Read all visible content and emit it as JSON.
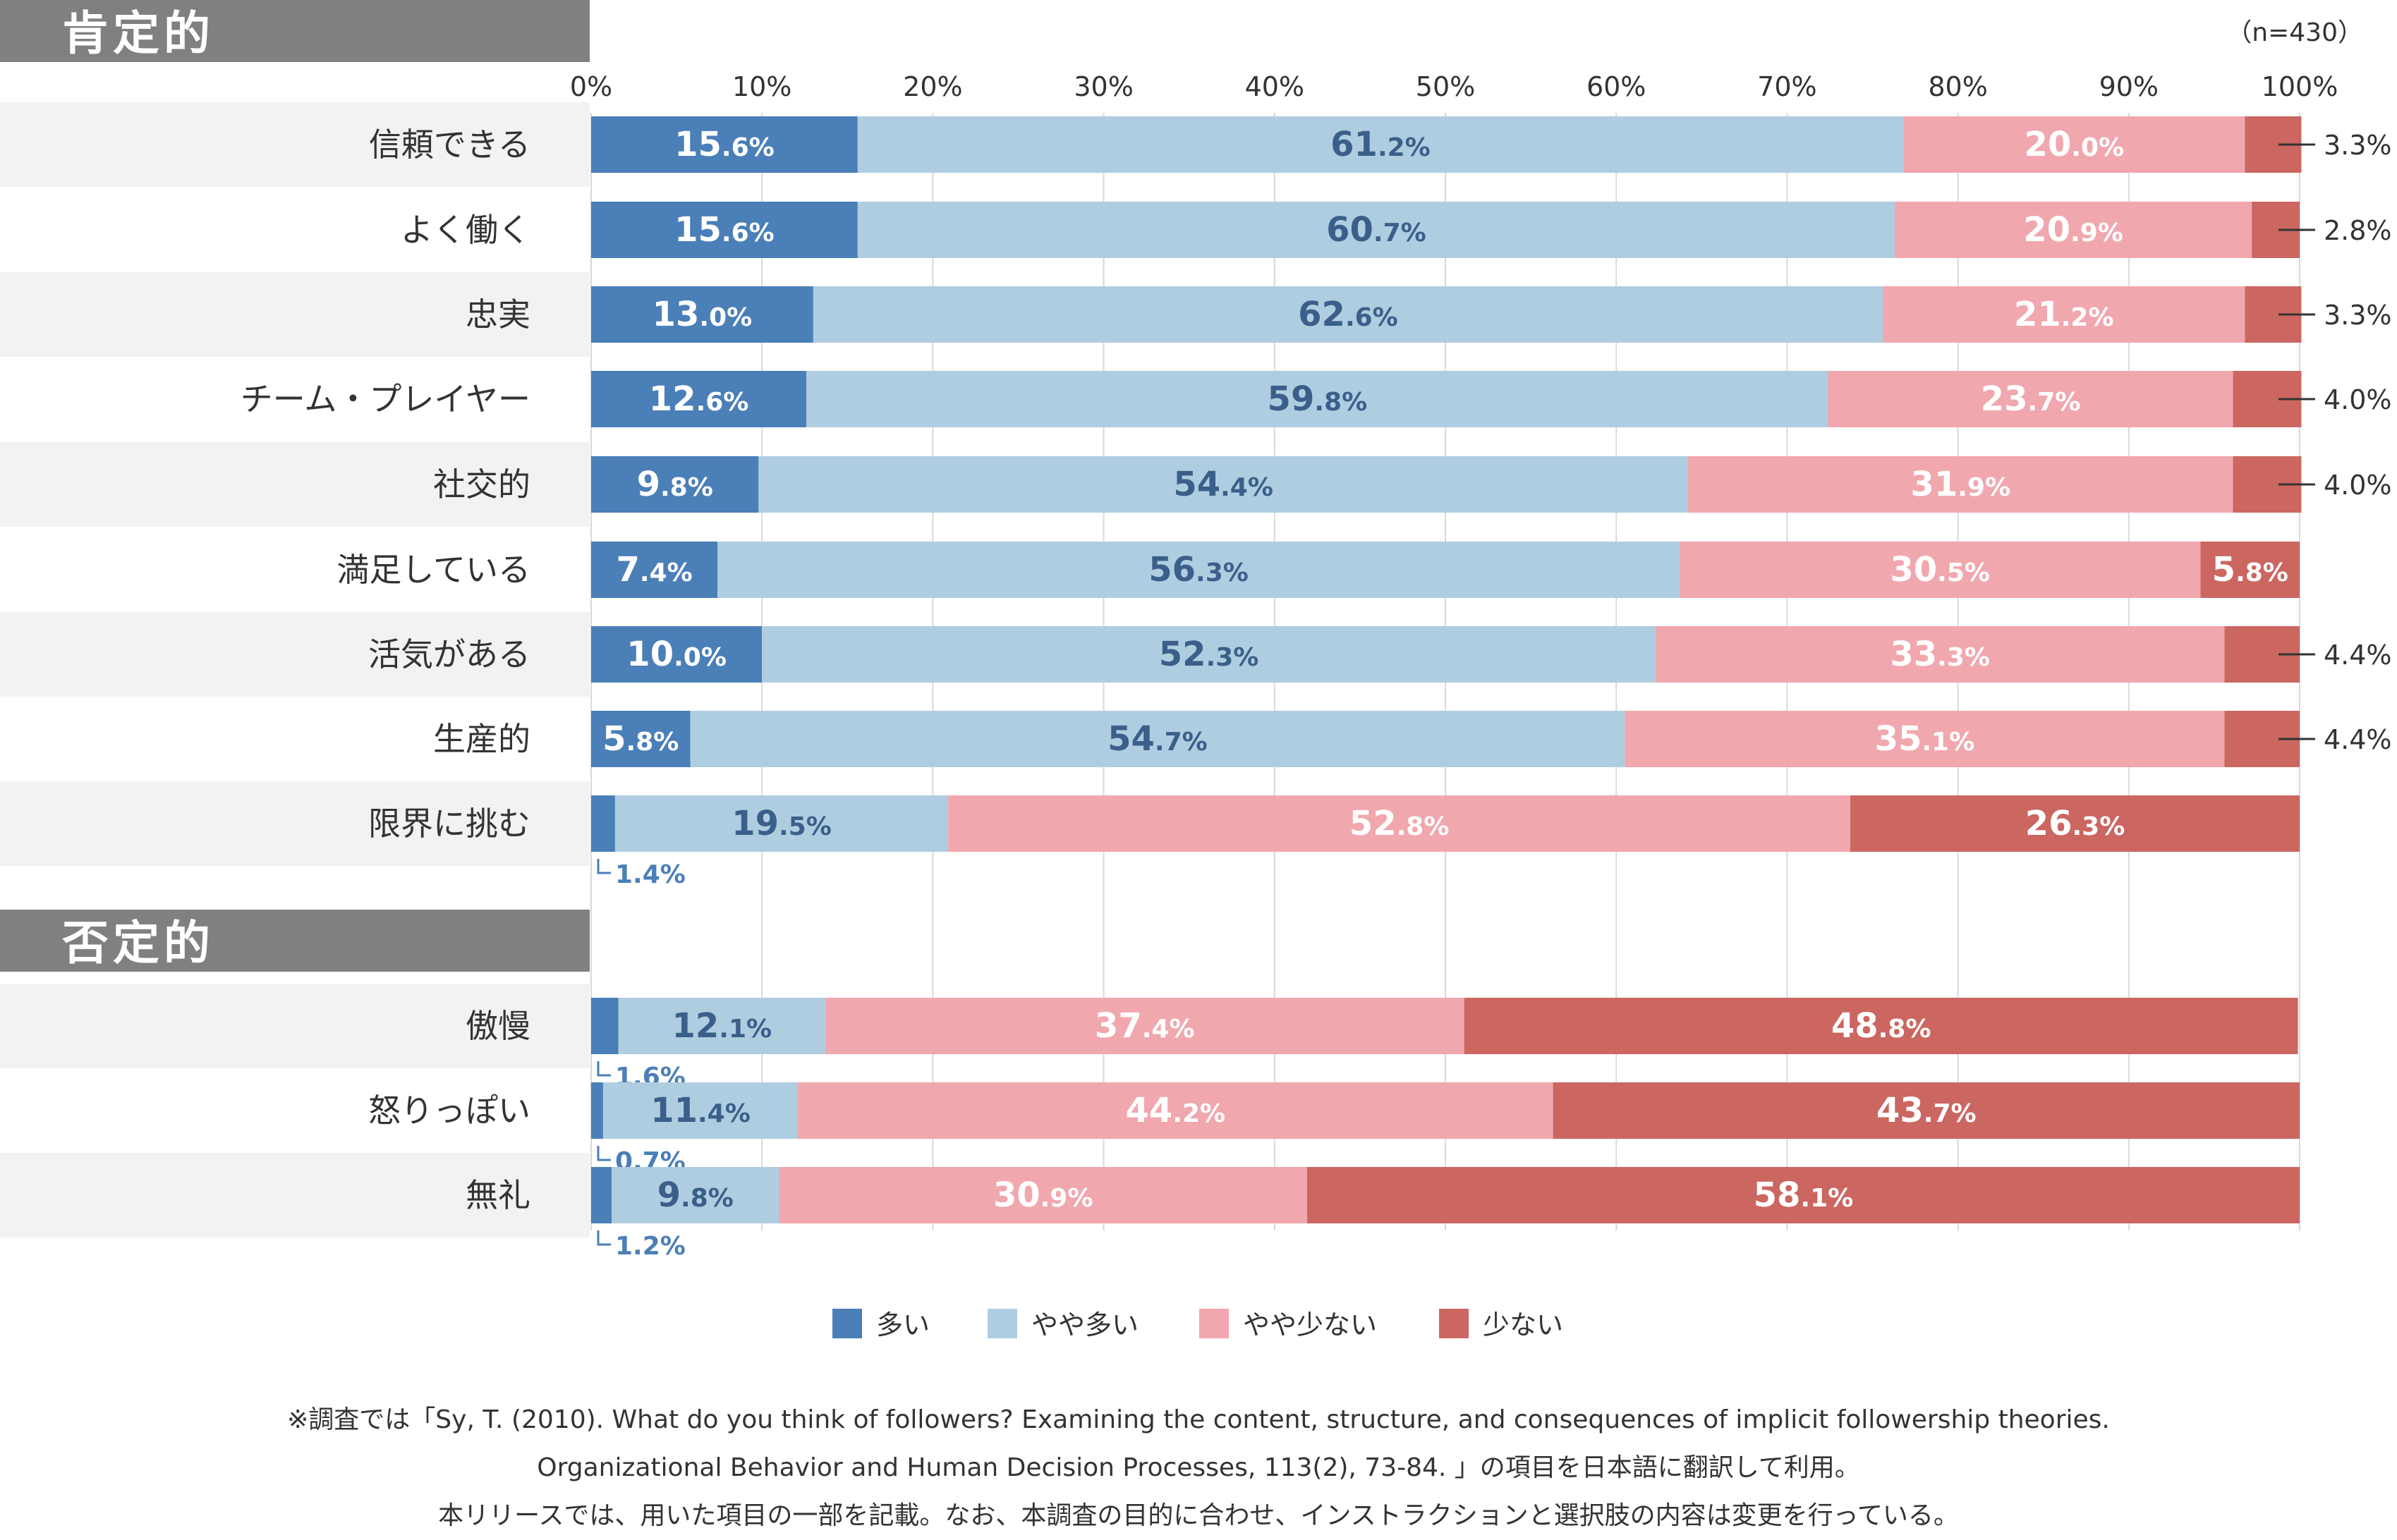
{
  "sections": [
    {
      "label": "肯定的"
    },
    {
      "label": "否定的"
    }
  ],
  "n_label": "（n=430）",
  "legend": [
    {
      "label": "多い",
      "color": "#4a7fb8"
    },
    {
      "label": "やや多い",
      "color": "#afcde0"
    },
    {
      "label": "やや少ない",
      "color": "#f1a7ae"
    },
    {
      "label": "少ない",
      "color": "#cb6661"
    }
  ],
  "footnotes": [
    "※調査では「Sy, T. (2010). What do you think of followers? Examining the content, structure, and consequences of implicit followership theories.",
    "Organizational Behavior and Human Decision Processes, 113(2), 73-84. 」の項目を日本語に翻訳して利用。",
    "本リリースでは、用いた項目の一部を記載。なお、本調査の目的に合わせ、インストラクションと選択肢の内容は変更を行っている。"
  ],
  "chart_data": {
    "type": "bar",
    "orientation": "horizontal-stacked-100",
    "xlim": [
      0,
      100
    ],
    "x_ticks": [
      "0%",
      "10%",
      "20%",
      "30%",
      "40%",
      "50%",
      "60%",
      "70%",
      "80%",
      "90%",
      "100%"
    ],
    "series_names": [
      "多い",
      "やや多い",
      "やや少ない",
      "少ない"
    ],
    "groups": [
      {
        "section": "肯定的",
        "items": [
          {
            "label": "信頼できる",
            "values": [
              15.6,
              61.2,
              20.0,
              3.3
            ],
            "display": [
              "15.6%",
              "61.2%",
              "20.0%",
              "3.3%"
            ]
          },
          {
            "label": "よく働く",
            "values": [
              15.6,
              60.7,
              20.9,
              2.8
            ],
            "display": [
              "15.6%",
              "60.7%",
              "20.9%",
              "2.8%"
            ]
          },
          {
            "label": "忠実",
            "values": [
              13.0,
              62.6,
              21.2,
              3.3
            ],
            "display": [
              "13.0%",
              "62.6%",
              "21.2%",
              "3.3%"
            ]
          },
          {
            "label": "チーム・プレイヤー",
            "values": [
              12.6,
              59.8,
              23.7,
              4.0
            ],
            "display": [
              "12.6%",
              "59.8%",
              "23.7%",
              "4.0%"
            ]
          },
          {
            "label": "社交的",
            "values": [
              9.8,
              54.4,
              31.9,
              4.0
            ],
            "display": [
              "9.8%",
              "54.4%",
              "31.9%",
              "4.0%"
            ]
          },
          {
            "label": "満足している",
            "values": [
              7.4,
              56.3,
              30.5,
              5.8
            ],
            "display": [
              "7.4%",
              "56.3%",
              "30.5%",
              "5.8%"
            ]
          },
          {
            "label": "活気がある",
            "values": [
              10.0,
              52.3,
              33.3,
              4.4
            ],
            "display": [
              "10.0%",
              "52.3%",
              "33.3%",
              "4.4%"
            ]
          },
          {
            "label": "生産的",
            "values": [
              5.8,
              54.7,
              35.1,
              4.4
            ],
            "display": [
              "5.8%",
              "54.7%",
              "35.1%",
              "4.4%"
            ]
          },
          {
            "label": "限界に挑む",
            "values": [
              1.4,
              19.5,
              52.8,
              26.3
            ],
            "display": [
              "1.4%",
              "19.5%",
              "52.8%",
              "26.3%"
            ]
          }
        ]
      },
      {
        "section": "否定的",
        "items": [
          {
            "label": "傲慢",
            "values": [
              1.6,
              12.1,
              37.4,
              48.8
            ],
            "display": [
              "1.6%",
              "12.1%",
              "37.4%",
              "48.8%"
            ]
          },
          {
            "label": "怒りっぽい",
            "values": [
              0.7,
              11.4,
              44.2,
              43.7
            ],
            "display": [
              "0.7%",
              "11.4%",
              "44.2%",
              "43.7%"
            ]
          },
          {
            "label": "無礼",
            "values": [
              1.2,
              9.8,
              30.9,
              58.1
            ],
            "display": [
              "1.2%",
              "9.8%",
              "30.9%",
              "58.1%"
            ]
          }
        ]
      }
    ]
  }
}
